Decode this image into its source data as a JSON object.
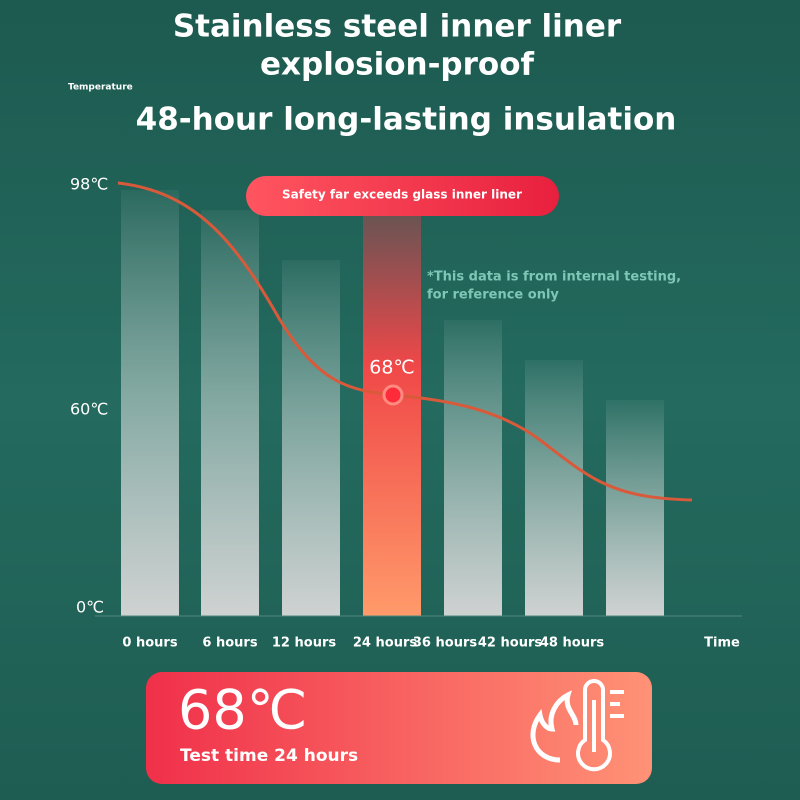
{
  "header": {
    "title_lines": [
      "Stainless steel inner liner",
      "explosion-proof"
    ],
    "subtitle": "48-hour long-lasting insulation"
  },
  "chart": {
    "y_axis_title": "Temperature",
    "y_labels": [
      "98℃",
      "60℃",
      "0℃"
    ],
    "x_labels": [
      "0 hours",
      "6 hours",
      "12 hours",
      "24 hours",
      "36 hours",
      "42 hours",
      "48 hours"
    ],
    "x_axis_title": "Time",
    "badge": "Safety far exceeds glass inner liner",
    "note_lines": [
      "*This data is from internal testing,",
      "for reference only"
    ],
    "point_label": "68℃"
  },
  "footer": {
    "value": "68℃",
    "caption": "Test time 24 hours"
  }
}
